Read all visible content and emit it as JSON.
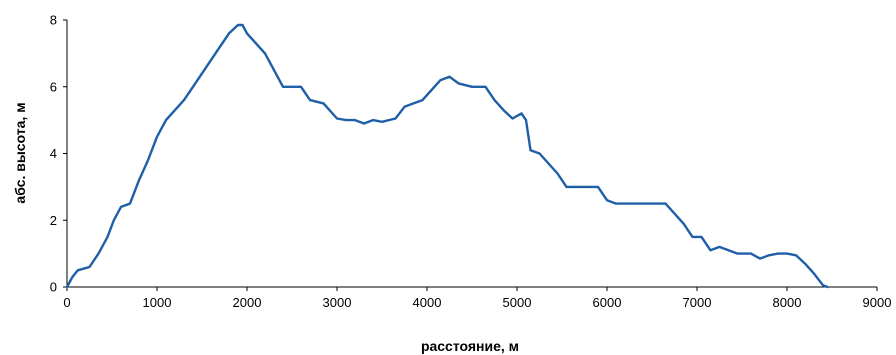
{
  "chart_data": {
    "type": "line",
    "title": "",
    "xlabel": "расстояние, м",
    "ylabel": "абс. высота, м",
    "xlim": [
      0,
      9000
    ],
    "ylim": [
      0,
      8
    ],
    "xticks": [
      0,
      1000,
      2000,
      3000,
      4000,
      5000,
      6000,
      7000,
      8000,
      9000
    ],
    "yticks": [
      0,
      2,
      4,
      6,
      8
    ],
    "grid": false,
    "legend": "none",
    "series": [
      {
        "color": "#1f5fa8",
        "points": [
          [
            0,
            0
          ],
          [
            60,
            0.3
          ],
          [
            120,
            0.5
          ],
          [
            250,
            0.6
          ],
          [
            350,
            1.0
          ],
          [
            450,
            1.5
          ],
          [
            520,
            2.0
          ],
          [
            600,
            2.4
          ],
          [
            700,
            2.5
          ],
          [
            800,
            3.2
          ],
          [
            900,
            3.8
          ],
          [
            1000,
            4.5
          ],
          [
            1100,
            5.0
          ],
          [
            1200,
            5.3
          ],
          [
            1300,
            5.6
          ],
          [
            1400,
            6.0
          ],
          [
            1500,
            6.4
          ],
          [
            1600,
            6.8
          ],
          [
            1700,
            7.2
          ],
          [
            1800,
            7.6
          ],
          [
            1900,
            7.85
          ],
          [
            1950,
            7.85
          ],
          [
            2000,
            7.6
          ],
          [
            2100,
            7.3
          ],
          [
            2200,
            7.0
          ],
          [
            2300,
            6.5
          ],
          [
            2400,
            6.0
          ],
          [
            2500,
            6.0
          ],
          [
            2600,
            6.0
          ],
          [
            2700,
            5.6
          ],
          [
            2850,
            5.5
          ],
          [
            3000,
            5.05
          ],
          [
            3100,
            5.0
          ],
          [
            3200,
            5.0
          ],
          [
            3300,
            4.9
          ],
          [
            3400,
            5.0
          ],
          [
            3500,
            4.95
          ],
          [
            3650,
            5.05
          ],
          [
            3750,
            5.4
          ],
          [
            3850,
            5.5
          ],
          [
            3950,
            5.6
          ],
          [
            4050,
            5.9
          ],
          [
            4150,
            6.2
          ],
          [
            4250,
            6.3
          ],
          [
            4350,
            6.1
          ],
          [
            4500,
            6.0
          ],
          [
            4650,
            6.0
          ],
          [
            4750,
            5.6
          ],
          [
            4850,
            5.3
          ],
          [
            4950,
            5.05
          ],
          [
            5050,
            5.2
          ],
          [
            5100,
            5.0
          ],
          [
            5150,
            4.1
          ],
          [
            5250,
            4.0
          ],
          [
            5350,
            3.7
          ],
          [
            5450,
            3.4
          ],
          [
            5550,
            3.0
          ],
          [
            5750,
            3.0
          ],
          [
            5900,
            3.0
          ],
          [
            6000,
            2.6
          ],
          [
            6100,
            2.5
          ],
          [
            6300,
            2.5
          ],
          [
            6500,
            2.5
          ],
          [
            6650,
            2.5
          ],
          [
            6750,
            2.2
          ],
          [
            6850,
            1.9
          ],
          [
            6950,
            1.5
          ],
          [
            7050,
            1.5
          ],
          [
            7150,
            1.1
          ],
          [
            7250,
            1.2
          ],
          [
            7350,
            1.1
          ],
          [
            7450,
            1.0
          ],
          [
            7600,
            1.0
          ],
          [
            7700,
            0.85
          ],
          [
            7800,
            0.95
          ],
          [
            7900,
            1.0
          ],
          [
            8000,
            1.0
          ],
          [
            8100,
            0.95
          ],
          [
            8200,
            0.7
          ],
          [
            8300,
            0.4
          ],
          [
            8400,
            0.05
          ],
          [
            8450,
            0
          ]
        ]
      }
    ]
  }
}
